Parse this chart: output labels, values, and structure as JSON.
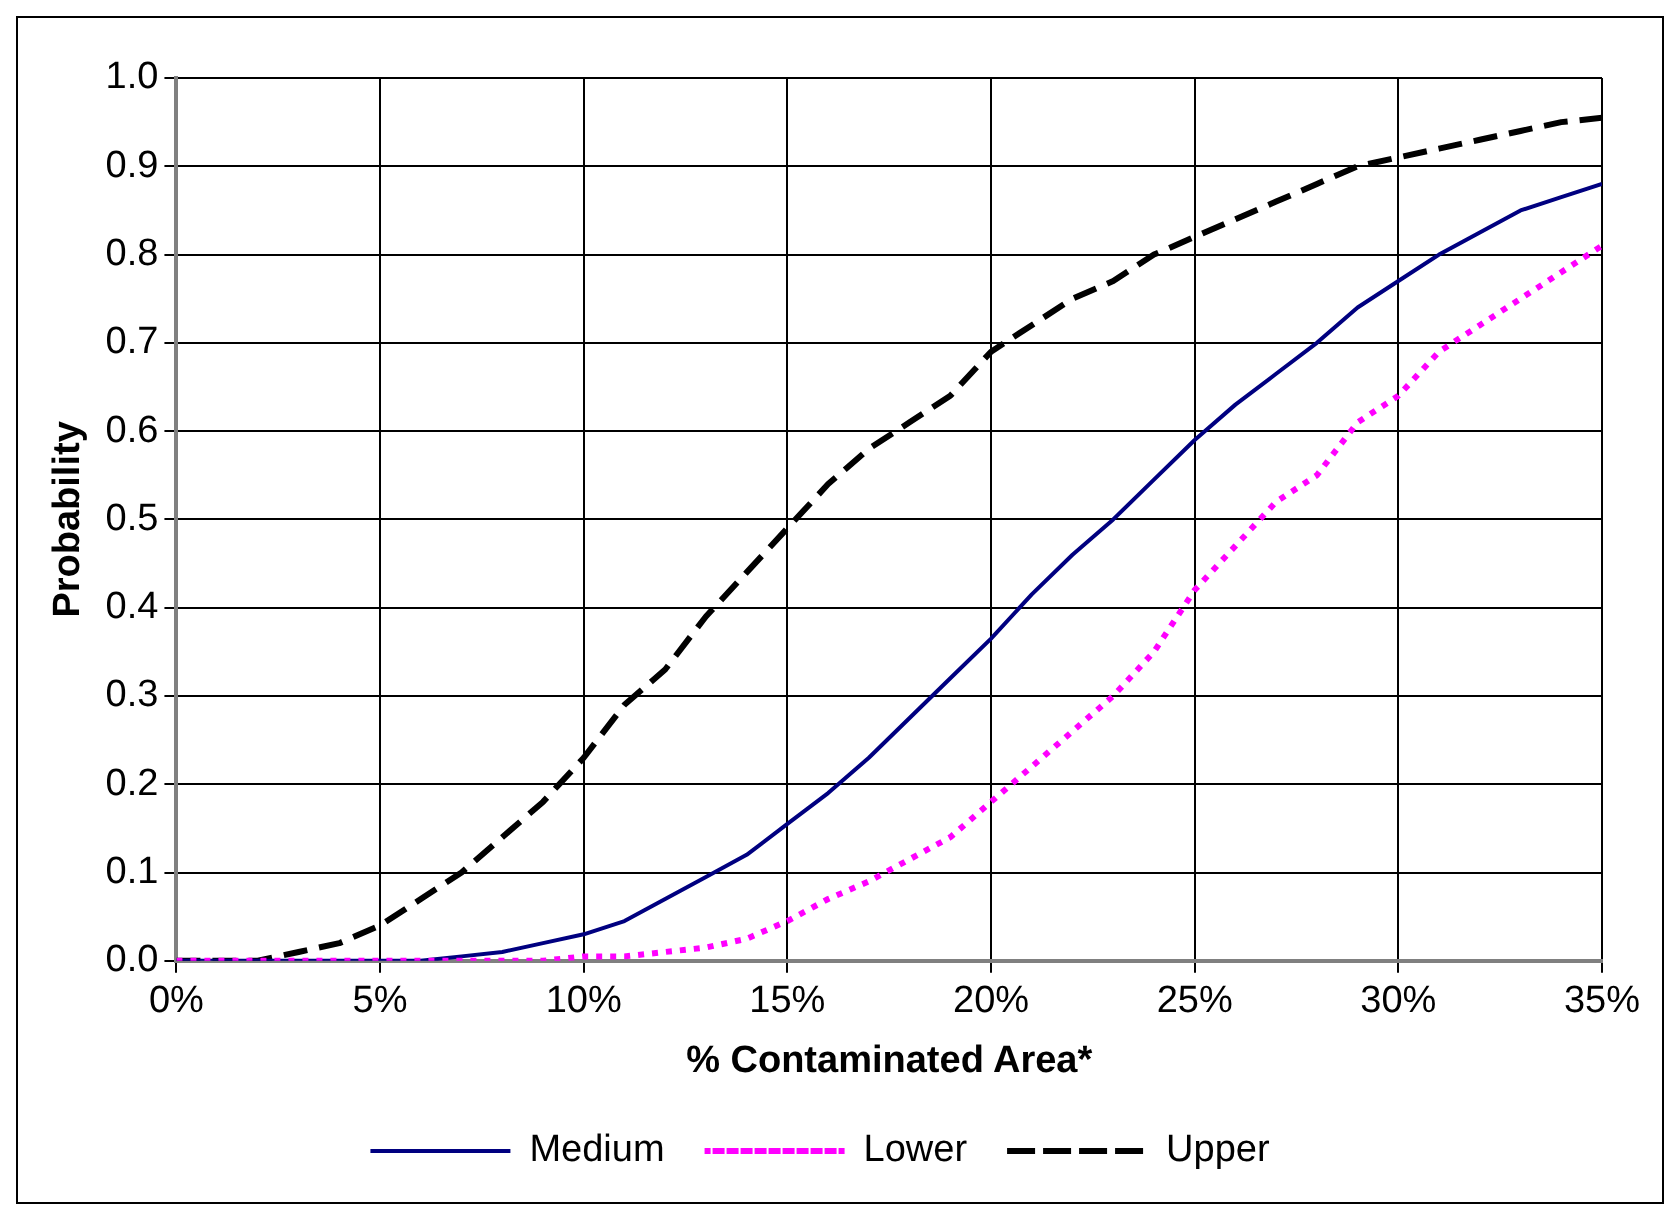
{
  "chart_data": {
    "type": "line",
    "xlabel": "% Contaminated Area*",
    "ylabel": "Probability",
    "x": [
      0,
      1,
      2,
      3,
      4,
      5,
      6,
      7,
      8,
      9,
      10,
      11,
      12,
      13,
      14,
      15,
      16,
      17,
      18,
      19,
      20,
      21,
      22,
      23,
      24,
      25,
      26,
      27,
      28,
      29,
      30,
      31,
      32,
      33,
      34,
      35
    ],
    "series": [
      {
        "name": "Medium",
        "color": "#000080",
        "line_style": "solid",
        "values": [
          0,
          0,
          0,
          0,
          0,
          0,
          0,
          0.005,
          0.01,
          0.02,
          0.03,
          0.045,
          0.07,
          0.095,
          0.12,
          0.155,
          0.19,
          0.23,
          0.275,
          0.32,
          0.365,
          0.415,
          0.46,
          0.5,
          0.545,
          0.59,
          0.63,
          0.665,
          0.7,
          0.74,
          0.77,
          0.8,
          0.825,
          0.85,
          0.865,
          0.88
        ]
      },
      {
        "name": "Lower",
        "color": "#ff00ff",
        "line_style": "dotted",
        "values": [
          0,
          0,
          0,
          0,
          0,
          0,
          0,
          0,
          0,
          0,
          0.005,
          0.005,
          0.01,
          0.015,
          0.025,
          0.045,
          0.07,
          0.09,
          0.115,
          0.14,
          0.18,
          0.22,
          0.26,
          0.3,
          0.35,
          0.42,
          0.47,
          0.52,
          0.55,
          0.61,
          0.64,
          0.69,
          0.72,
          0.75,
          0.78,
          0.81
        ]
      },
      {
        "name": "Upper",
        "color": "#000000",
        "line_style": "dashed",
        "values": [
          0,
          0,
          0,
          0.01,
          0.02,
          0.04,
          0.07,
          0.1,
          0.14,
          0.18,
          0.23,
          0.29,
          0.33,
          0.39,
          0.44,
          0.49,
          0.54,
          0.58,
          0.61,
          0.64,
          0.69,
          0.72,
          0.75,
          0.77,
          0.8,
          0.82,
          0.84,
          0.86,
          0.88,
          0.9,
          0.91,
          0.92,
          0.93,
          0.94,
          0.95,
          0.955
        ]
      }
    ],
    "xlim": [
      0,
      35
    ],
    "xticks": [
      {
        "value": 0,
        "label": "0%"
      },
      {
        "value": 5,
        "label": "5%"
      },
      {
        "value": 10,
        "label": "10%"
      },
      {
        "value": 15,
        "label": "15%"
      },
      {
        "value": 20,
        "label": "20%"
      },
      {
        "value": 25,
        "label": "25%"
      },
      {
        "value": 30,
        "label": "30%"
      },
      {
        "value": 35,
        "label": "35%"
      }
    ],
    "ylim": [
      0,
      1
    ],
    "yticks": [
      {
        "value": 0,
        "label": "0.0"
      },
      {
        "value": 0.1,
        "label": "0.1"
      },
      {
        "value": 0.2,
        "label": "0.2"
      },
      {
        "value": 0.3,
        "label": "0.3"
      },
      {
        "value": 0.4,
        "label": "0.4"
      },
      {
        "value": 0.5,
        "label": "0.5"
      },
      {
        "value": 0.6,
        "label": "0.6"
      },
      {
        "value": 0.7,
        "label": "0.7"
      },
      {
        "value": 0.8,
        "label": "0.8"
      },
      {
        "value": 0.9,
        "label": "0.9"
      },
      {
        "value": 1,
        "label": "1.0"
      }
    ],
    "grid": true,
    "legend": "bottom",
    "marker": "none"
  }
}
